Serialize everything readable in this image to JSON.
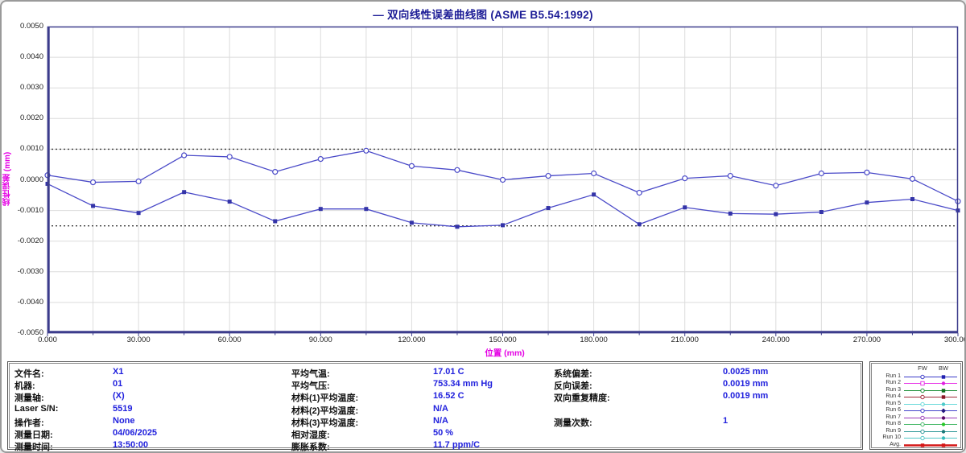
{
  "title": "— 双向线性误差曲线图  (ASME B5.54:1992)",
  "chart_data": {
    "type": "line",
    "title": "— 双向线性误差曲线图  (ASME B5.54:1992)",
    "xlabel": "位置 (mm)",
    "ylabel": "线性误差 (mm)",
    "xlim": [
      0,
      300
    ],
    "ylim": [
      -0.005,
      0.005
    ],
    "x_grid_step": 15,
    "y_grid_step": 0.001,
    "grid": true,
    "legend_position": "bottom-right-panel",
    "x_ticks": [
      "0.000",
      "30.000",
      "60.000",
      "90.000",
      "120.000",
      "150.000",
      "180.000",
      "210.000",
      "240.000",
      "270.000",
      "300.000"
    ],
    "y_ticks": [
      "0.0050",
      "0.0040",
      "0.0030",
      "0.0020",
      "0.0010",
      "0.0000",
      "-0.0010",
      "-0.0020",
      "-0.0030",
      "-0.0040",
      "-0.0050"
    ],
    "limit_lines": [
      0.001,
      -0.0015
    ],
    "series_color": "#4a4ac8",
    "x": [
      0,
      15,
      30,
      45,
      60,
      75,
      90,
      105,
      120,
      135,
      150,
      165,
      180,
      195,
      210,
      225,
      240,
      255,
      270,
      285,
      300
    ],
    "series": [
      {
        "name": "Run 1 FW",
        "marker": "circle-open",
        "values": [
          0.00015,
          -8e-05,
          -5e-05,
          0.0008,
          0.00075,
          0.00026,
          0.00068,
          0.00095,
          0.00045,
          0.00032,
          0.0,
          0.00013,
          0.00021,
          -0.00042,
          5e-05,
          0.00013,
          -0.00019,
          0.00021,
          0.00024,
          3e-05,
          -0.0007
        ]
      },
      {
        "name": "Run 1 BW",
        "marker": "square-filled",
        "values": [
          -0.00013,
          -0.00085,
          -0.00108,
          -0.0004,
          -0.00071,
          -0.00135,
          -0.00095,
          -0.00095,
          -0.0014,
          -0.00153,
          -0.00148,
          -0.00092,
          -0.00048,
          -0.00145,
          -0.0009,
          -0.0011,
          -0.00112,
          -0.00105,
          -0.00074,
          -0.00063,
          -0.001
        ]
      }
    ]
  },
  "info_panel": {
    "columns": [
      {
        "rows": [
          {
            "label": "文件名:",
            "value": "X1"
          },
          {
            "label": "机器:",
            "value": "01"
          },
          {
            "label": "测量轴:",
            "value": "(X)"
          },
          {
            "label": "Laser S/N:",
            "value": "5519"
          },
          {
            "label": "操作者:",
            "value": "None"
          },
          {
            "label": "测量日期:",
            "value": "04/06/2025"
          },
          {
            "label": "测量时间:",
            "value": "13:50:00"
          }
        ]
      },
      {
        "rows": [
          {
            "label": "平均气温:",
            "value": "17.01 C"
          },
          {
            "label": "平均气压:",
            "value": "753.34 mm Hg"
          },
          {
            "label": "材料(1)平均温度:",
            "value": "16.52 C"
          },
          {
            "label": "材料(2)平均温度:",
            "value": "N/A"
          },
          {
            "label": "材料(3)平均温度:",
            "value": "N/A"
          },
          {
            "label": "相对湿度:",
            "value": "50 %"
          },
          {
            "label": "膨胀系数:",
            "value": "11.7 ppm/C"
          }
        ]
      },
      {
        "rows": [
          {
            "label": "系统偏差:",
            "value": "0.0025 mm"
          },
          {
            "label": "反向误差:",
            "value": "0.0019 mm"
          },
          {
            "label": "双向重复精度:",
            "value": "0.0019 mm"
          },
          {
            "label": "",
            "value": ""
          },
          {
            "label": "测量次数:",
            "value": "1"
          }
        ]
      }
    ]
  },
  "legend": {
    "fw_header": "FW",
    "bw_header": "BW",
    "runs": [
      {
        "label": "Run 1",
        "color": "#3a3ac8",
        "fw": "circle-open",
        "bw": "square",
        "bw_color": "#2020b0",
        "width": 1
      },
      {
        "label": "Run 2",
        "color": "#e83ae8",
        "fw": "square-open",
        "bw": "circle",
        "bw_color": "#e020e0",
        "width": 1
      },
      {
        "label": "Run 3",
        "color": "#1f8f3a",
        "fw": "circle-open",
        "bw": "square",
        "bw_color": "#0f6f1f",
        "width": 1
      },
      {
        "label": "Run 4",
        "color": "#a02838",
        "fw": "circle-open",
        "bw": "square",
        "bw_color": "#8a1828",
        "width": 1
      },
      {
        "label": "Run 5",
        "color": "#6adada",
        "fw": "circle-open",
        "bw": "circle",
        "bw_color": "#4ccaca",
        "width": 1
      },
      {
        "label": "Run 6",
        "color": "#4444cc",
        "fw": "circle-open",
        "bw": "diamond",
        "bw_color": "#241880",
        "width": 1
      },
      {
        "label": "Run 7",
        "color": "#9a3ab8",
        "fw": "circle-open",
        "bw": "circle",
        "bw_color": "#5a0868",
        "width": 1
      },
      {
        "label": "Run 8",
        "color": "#46b868",
        "fw": "circle-open",
        "bw": "circle",
        "bw_color": "#28c828",
        "width": 1
      },
      {
        "label": "Run 9",
        "color": "#2f9898",
        "fw": "circle-open",
        "bw": "circle",
        "bw_color": "#1a7878",
        "width": 1
      },
      {
        "label": "Run 10",
        "color": "#52c8c8",
        "fw": "circle-open",
        "bw": "circle",
        "bw_color": "#38bcbc",
        "width": 1
      },
      {
        "label": "Avg.",
        "color": "#d41616",
        "fw": "square-filled",
        "bw": "square",
        "bw_color": "#d41616",
        "width": 2.5
      }
    ]
  }
}
